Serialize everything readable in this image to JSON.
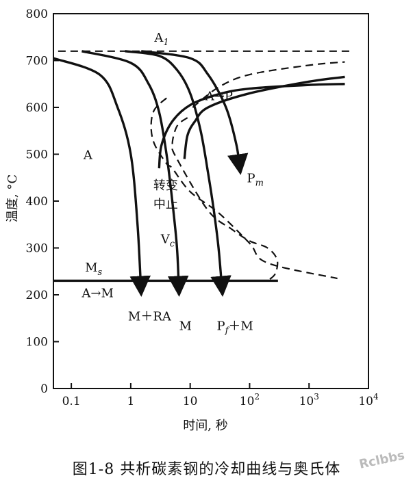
{
  "chart_data": {
    "type": "line",
    "title": "",
    "xlabel": "时间, 秒",
    "ylabel": "温度, °C",
    "x_scale": "log",
    "xlim": [
      0.05,
      10000
    ],
    "ylim": [
      0,
      800
    ],
    "x_ticks": [
      {
        "value": 0.1,
        "label": "0.1"
      },
      {
        "value": 1,
        "label": "1"
      },
      {
        "value": 10,
        "label": "10"
      },
      {
        "value": 100,
        "label": "10",
        "sup": "2"
      },
      {
        "value": 1000,
        "label": "10",
        "sup": "3"
      },
      {
        "value": 10000,
        "label": "10",
        "sup": "4"
      }
    ],
    "y_ticks": [
      0,
      100,
      200,
      300,
      400,
      500,
      600,
      700,
      800
    ],
    "grid": false,
    "series": [
      {
        "style": "dashed",
        "points": [
          [
            0.06,
            720
          ],
          [
            5000,
            720
          ]
        ]
      },
      {
        "style": "dashed",
        "points": [
          [
            11,
            600
          ],
          [
            30,
            643
          ],
          [
            100,
            670
          ],
          [
            1000,
            690
          ],
          [
            4000,
            697
          ]
        ]
      },
      {
        "style": "dashed",
        "points": [
          [
            4,
            620
          ],
          [
            2.5,
            595
          ],
          [
            2.2,
            560
          ],
          [
            2.5,
            522
          ],
          [
            4,
            480
          ],
          [
            5,
            470
          ],
          [
            10,
            420
          ],
          [
            30,
            375
          ],
          [
            100,
            310
          ],
          [
            200,
            268
          ],
          [
            3000,
            235
          ]
        ]
      },
      {
        "style": "dashed",
        "points": [
          [
            9,
            578
          ],
          [
            6,
            560
          ],
          [
            5,
            520
          ],
          [
            6,
            490
          ],
          [
            20,
            380
          ],
          [
            50,
            340
          ],
          [
            100,
            315
          ],
          [
            200,
            300
          ],
          [
            290,
            275
          ],
          [
            270,
            245
          ],
          [
            200,
            230
          ]
        ]
      },
      {
        "style": "solid",
        "points": [
          [
            3,
            470
          ],
          [
            3.3,
            520
          ],
          [
            5,
            570
          ],
          [
            10,
            605
          ],
          [
            30,
            628
          ],
          [
            100,
            640
          ],
          [
            1000,
            648
          ],
          [
            4000,
            650
          ]
        ]
      },
      {
        "style": "solid",
        "points": [
          [
            8,
            490
          ],
          [
            9,
            540
          ],
          [
            12,
            570
          ],
          [
            20,
            600
          ],
          [
            100,
            630
          ],
          [
            1000,
            655
          ],
          [
            4000,
            665
          ]
        ]
      },
      {
        "style": "solid",
        "points": [
          [
            0.05,
            705
          ],
          [
            0.3,
            670
          ],
          [
            0.6,
            600
          ],
          [
            1,
            500
          ],
          [
            1.3,
            350
          ],
          [
            1.5,
            200
          ]
        ]
      },
      {
        "style": "solid",
        "points": [
          [
            0.15,
            720
          ],
          [
            1,
            695
          ],
          [
            2,
            650
          ],
          [
            3,
            590
          ],
          [
            4,
            500
          ],
          [
            5,
            400
          ],
          [
            6,
            300
          ],
          [
            6.5,
            200
          ]
        ]
      },
      {
        "style": "solid",
        "points": [
          [
            0.8,
            720
          ],
          [
            3,
            710
          ],
          [
            6,
            680
          ],
          [
            10,
            630
          ],
          [
            15,
            550
          ],
          [
            20,
            460
          ],
          [
            25,
            380
          ],
          [
            30,
            300
          ],
          [
            35,
            200
          ]
        ]
      },
      {
        "style": "solid",
        "points": [
          [
            1.5,
            720
          ],
          [
            10,
            705
          ],
          [
            20,
            670
          ],
          [
            40,
            600
          ],
          [
            60,
            520
          ],
          [
            70,
            460
          ]
        ]
      },
      {
        "style": "solid",
        "points": [
          [
            0.05,
            230
          ],
          [
            300,
            230
          ]
        ]
      }
    ],
    "arrows_at": [
      [
        1.5,
        200
      ],
      [
        6.5,
        200
      ],
      [
        35,
        200
      ],
      [
        70,
        460
      ]
    ],
    "annotations": [
      {
        "text": "A",
        "sub": "1",
        "x": 2.5,
        "y": 740
      },
      {
        "text": "A→P",
        "x": 18,
        "y": 615
      },
      {
        "text": "A",
        "x": 0.16,
        "y": 490
      },
      {
        "text": "P",
        "sub": "m",
        "x": 90,
        "y": 440
      },
      {
        "text": "转变",
        "x": 2.4,
        "y": 425
      },
      {
        "text": "中止",
        "x": 2.4,
        "y": 385
      },
      {
        "text": "V",
        "sub": "c",
        "x": 3.2,
        "y": 310
      },
      {
        "text": "M",
        "sub": "s",
        "x": 0.17,
        "y": 250
      },
      {
        "text": "A→M",
        "x": 0.15,
        "y": 195
      },
      {
        "text": "M＋RA",
        "x": 0.9,
        "y": 145
      },
      {
        "text": "M",
        "x": 6.5,
        "y": 125
      },
      {
        "text": "P",
        "sub": "f",
        "mid": "＋M",
        "x": 28,
        "y": 125
      }
    ]
  },
  "caption": "图1-8   共析碳素钢的冷却曲线与奥氏体",
  "watermark": "Rclbbs"
}
